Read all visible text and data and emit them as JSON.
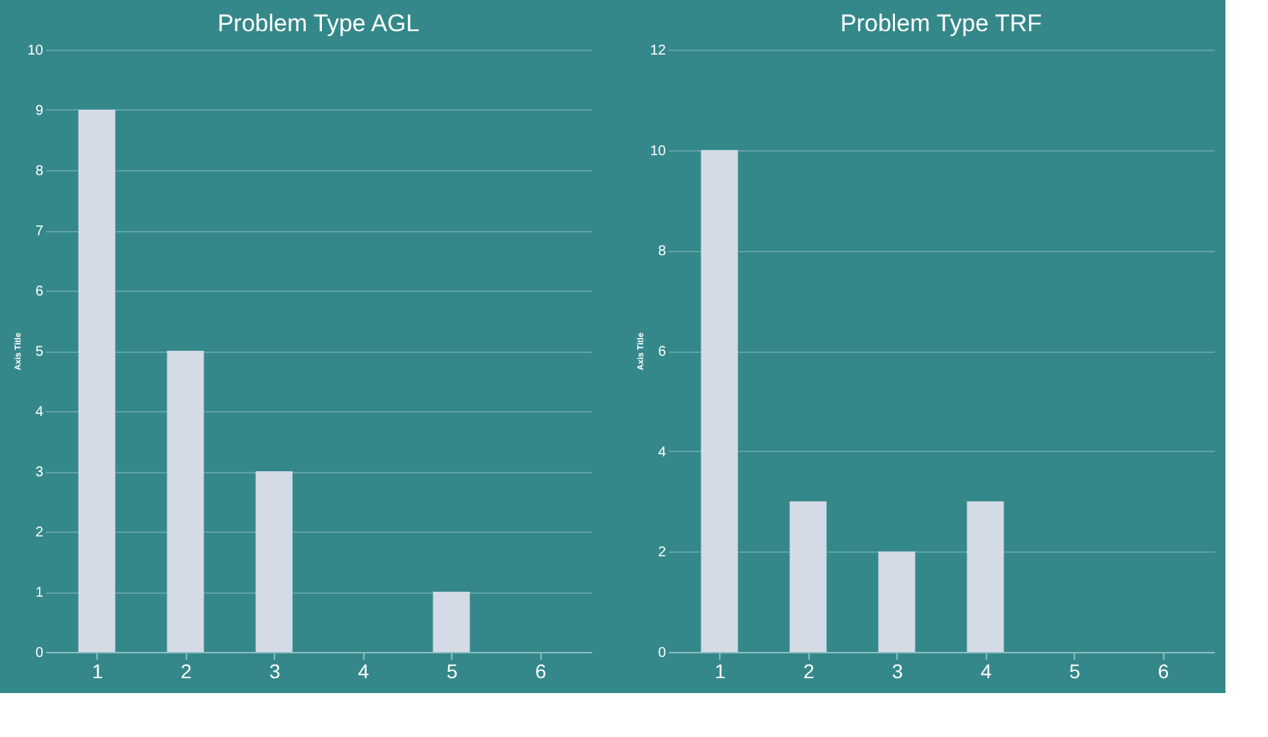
{
  "chart_data": [
    {
      "type": "bar",
      "title": "Problem Type AGL",
      "ylabel": "Axis Title",
      "categories": [
        "1",
        "2",
        "3",
        "4",
        "5",
        "6"
      ],
      "series": [
        {
          "color": "#d5dbe6",
          "values": [
            9,
            5,
            3,
            0,
            1,
            0
          ]
        }
      ],
      "ylim": [
        0,
        10
      ],
      "yticks": [
        0,
        1,
        2,
        3,
        4,
        5,
        6,
        7,
        8,
        9,
        10
      ],
      "grid": "y"
    },
    {
      "type": "bar",
      "title": "Problem Type TRF",
      "ylabel": "Axis Title",
      "categories": [
        "1",
        "2",
        "3",
        "4",
        "5",
        "6"
      ],
      "series": [
        {
          "color": "#d5dbe6",
          "values": [
            10,
            3,
            2,
            3,
            0,
            0
          ]
        }
      ],
      "ylim": [
        0,
        12
      ],
      "yticks": [
        0,
        2,
        4,
        6,
        8,
        10,
        12
      ],
      "grid": "y"
    }
  ]
}
